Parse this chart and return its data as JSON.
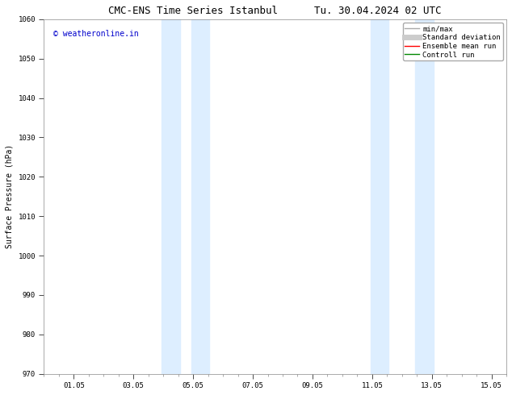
{
  "title": "CMC-ENS Time Series Istanbul      Tu. 30.04.2024 02 UTC",
  "ylabel": "Surface Pressure (hPa)",
  "ylim": [
    970,
    1060
  ],
  "yticks": [
    970,
    980,
    990,
    1000,
    1010,
    1020,
    1030,
    1040,
    1050,
    1060
  ],
  "xlim": [
    0.0,
    15.5
  ],
  "xtick_labels": [
    "01.05",
    "03.05",
    "05.05",
    "07.05",
    "09.05",
    "11.05",
    "13.05",
    "15.05"
  ],
  "xtick_positions": [
    1,
    3,
    5,
    7,
    9,
    11,
    13,
    15
  ],
  "shaded_regions": [
    {
      "x_start": 3.95,
      "x_end": 4.55,
      "color": "#ddeeff"
    },
    {
      "x_start": 4.95,
      "x_end": 5.55,
      "color": "#ddeeff"
    },
    {
      "x_start": 10.95,
      "x_end": 11.55,
      "color": "#ddeeff"
    },
    {
      "x_start": 12.45,
      "x_end": 13.05,
      "color": "#ddeeff"
    }
  ],
  "watermark_text": "© weatheronline.in",
  "watermark_color": "#0000cc",
  "watermark_fontsize": 7,
  "background_color": "#ffffff",
  "legend_items": [
    {
      "label": "min/max",
      "color": "#aaaaaa",
      "lw": 1.0,
      "style": "solid"
    },
    {
      "label": "Standard deviation",
      "color": "#cccccc",
      "lw": 5,
      "style": "solid"
    },
    {
      "label": "Ensemble mean run",
      "color": "#ff0000",
      "lw": 1.0,
      "style": "solid"
    },
    {
      "label": "Controll run",
      "color": "#008800",
      "lw": 1.0,
      "style": "solid"
    }
  ],
  "title_fontsize": 9,
  "axis_label_fontsize": 7,
  "tick_fontsize": 6.5,
  "legend_fontsize": 6.5
}
